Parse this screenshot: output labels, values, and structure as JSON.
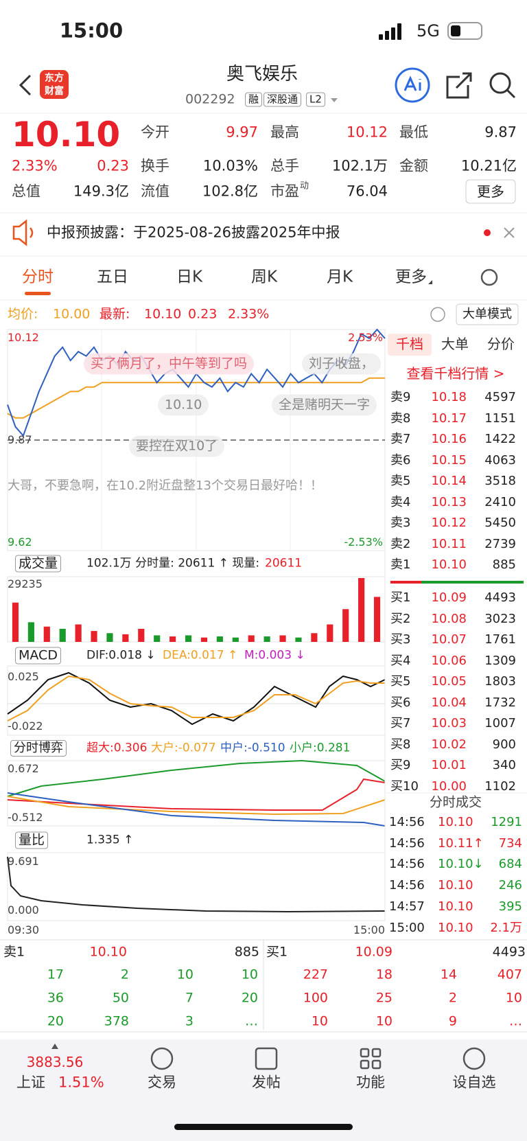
{
  "status": {
    "time": "15:00",
    "network": "5G"
  },
  "header": {
    "logo": [
      "东方",
      "财富"
    ],
    "title": "奥飞娱乐",
    "code": "002292",
    "tags": [
      "融",
      "深股通",
      "L2"
    ]
  },
  "quote": {
    "price": "10.10",
    "change_pct": "2.33%",
    "change": "0.23",
    "more": "更多",
    "fields": [
      {
        "label": "今开",
        "value": "9.97",
        "color": "#e8202a"
      },
      {
        "label": "最高",
        "value": "10.12",
        "color": "#e8202a"
      },
      {
        "label": "最低",
        "value": "9.87",
        "color": "#222222"
      },
      {
        "label": "换手",
        "value": "10.03%",
        "color": "#222222"
      },
      {
        "label": "总手",
        "value": "102.1万",
        "color": "#222222"
      },
      {
        "label": "金额",
        "value": "10.21亿",
        "color": "#222222"
      },
      {
        "label": "总值",
        "value": "149.3亿",
        "color": "#222222"
      },
      {
        "label": "流值",
        "value": "102.8亿",
        "color": "#222222"
      },
      {
        "label": "市盈",
        "sup": "动",
        "value": "76.04",
        "color": "#222222"
      }
    ]
  },
  "notice": "中报预披露：于2025-08-26披露2025年中报",
  "tabs": [
    "分时",
    "五日",
    "日K",
    "周K",
    "月K",
    "更多"
  ],
  "infobar": {
    "avg_label": "均价:",
    "avg": "10.00",
    "last_label": "最新:",
    "last": "10.10",
    "change": "0.23",
    "change_pct": "2.33%",
    "mode": "大单模式"
  },
  "chart_data": [
    {
      "type": "line",
      "ylim": [
        9.62,
        10.12
      ],
      "labels": {
        "top": "10.12",
        "top_pct": "2.53%",
        "ref": "9.87",
        "bottom": "9.62",
        "bottom_pct": "-2.53%"
      },
      "series": [
        {
          "name": "最新",
          "color": "#2d5fbf",
          "values": [
            9.95,
            9.9,
            9.88,
            9.93,
            9.98,
            10.02,
            10.06,
            10.08,
            10.05,
            10.07,
            10.06,
            10.08,
            10.05,
            10.06,
            10.04,
            10.07,
            10.05,
            10.06,
            10.03,
            10.0,
            10.02,
            10.03,
            10.01,
            9.99,
            10.02,
            10.0,
            9.99,
            10.01,
            9.98,
            10.0,
            9.99,
            10.02,
            10.0,
            10.03,
            10.01,
            9.99,
            10.02,
            10.0,
            10.01,
            10.02,
            10.0,
            10.03,
            10.05,
            10.04,
            10.07,
            10.11,
            10.1,
            10.12,
            10.1
          ]
        },
        {
          "name": "均价",
          "color": "#f0a020",
          "values": [
            9.93,
            9.92,
            9.92,
            9.93,
            9.94,
            9.95,
            9.96,
            9.97,
            9.98,
            9.98,
            9.99,
            9.99,
            10.0,
            10.0,
            10.0,
            10.0,
            10.0,
            10.0,
            10.0,
            10.0,
            10.0,
            10.0,
            10.0,
            10.0,
            10.0,
            10.0,
            10.0,
            10.0,
            10.0,
            10.0,
            10.0,
            10.0,
            10.0,
            10.0,
            10.0,
            10.0,
            10.0,
            10.0,
            10.0,
            10.0,
            10.0,
            10.0,
            10.0,
            10.0,
            10.0,
            10.0,
            10.01,
            10.01,
            10.01
          ]
        }
      ],
      "ref_value": 9.87
    },
    {
      "type": "bar",
      "title": "成交量",
      "info": "102.1万 分时量: 20611 ↑ 现量:",
      "now": "20611",
      "max_label": "29235",
      "ylim": [
        0,
        29235
      ],
      "values": [
        18000,
        9000,
        7000,
        6000,
        8000,
        5000,
        4000,
        3500,
        6000,
        3000,
        2500,
        3000,
        2000,
        2500,
        2000,
        3000,
        2500,
        3000,
        2000,
        4000,
        8000,
        15000,
        29235,
        20611
      ],
      "colors": [
        "#e8202a",
        "#1a9a2a",
        "#e8202a",
        "#1a9a2a",
        "#e8202a",
        "#e8202a",
        "#1a9a2a",
        "#e8202a",
        "#e8202a",
        "#1a9a2a",
        "#e8202a",
        "#1a9a2a",
        "#e8202a",
        "#1a9a2a",
        "#1a9a2a",
        "#e8202a",
        "#1a9a2a",
        "#e8202a",
        "#1a9a2a",
        "#e8202a",
        "#e8202a",
        "#e8202a",
        "#e8202a",
        "#e8202a"
      ]
    }
  ],
  "comments": [
    "买了俩月了，中午等到了吗",
    "刘子收盘，",
    "10.10",
    "全是赌明天一字",
    "要控在双10了",
    "大哥，不要急啊，在10.2附近盘整13个交易日最好哈！！"
  ],
  "macd": {
    "title": "MACD",
    "dif": "DIF:0.018 ↓",
    "dea": "DEA:0.017 ↑",
    "m": "M:0.003 ↓",
    "top": "0.025",
    "bottom": "-0.022"
  },
  "game": {
    "title": "分时博弈",
    "super": "超大:0.306",
    "large": "大户:-0.077",
    "mid": "中户:-0.510",
    "small": "小户:0.281",
    "top": "0.672",
    "bottom": "-0.512"
  },
  "ratio": {
    "title": "量比",
    "value": "1.335 ↑",
    "top": "9.691",
    "bottom": "0.000",
    "start": "09:30",
    "end": "15:00"
  },
  "panel": {
    "tabs": [
      "千档",
      "大单",
      "分价"
    ],
    "link": "查看千档行情 >",
    "asks": [
      [
        "卖9",
        "10.18",
        "4597"
      ],
      [
        "卖8",
        "10.17",
        "1151"
      ],
      [
        "卖7",
        "10.16",
        "1422"
      ],
      [
        "卖6",
        "10.15",
        "4063"
      ],
      [
        "卖5",
        "10.14",
        "3518"
      ],
      [
        "卖4",
        "10.13",
        "2410"
      ],
      [
        "卖3",
        "10.12",
        "5450"
      ],
      [
        "卖2",
        "10.11",
        "2739"
      ],
      [
        "卖1",
        "10.10",
        "885"
      ]
    ],
    "bids": [
      [
        "买1",
        "10.09",
        "4493"
      ],
      [
        "买2",
        "10.08",
        "3023"
      ],
      [
        "买3",
        "10.07",
        "1761"
      ],
      [
        "买4",
        "10.06",
        "1309"
      ],
      [
        "买5",
        "10.05",
        "1803"
      ],
      [
        "买6",
        "10.04",
        "1732"
      ],
      [
        "买7",
        "10.03",
        "1007"
      ],
      [
        "买8",
        "10.02",
        "900"
      ],
      [
        "买9",
        "10.01",
        "340"
      ],
      [
        "买10",
        "10.00",
        "1102"
      ]
    ],
    "trades_title": "分时成交",
    "trades": [
      {
        "time": "14:56",
        "price": "10.10",
        "volume": "1291",
        "price_color": "#e8202a",
        "volume_color": "#1a9a2a"
      },
      {
        "time": "14:56",
        "price": "10.11↑",
        "volume": "734",
        "price_color": "#e8202a",
        "volume_color": "#e8202a"
      },
      {
        "time": "14:56",
        "price": "10.10↓",
        "volume": "684",
        "price_color": "#1a9a2a",
        "volume_color": "#1a9a2a"
      },
      {
        "time": "14:56",
        "price": "10.10",
        "volume": "246",
        "price_color": "#e8202a",
        "volume_color": "#1a9a2a"
      },
      {
        "time": "14:57",
        "price": "10.10",
        "volume": "395",
        "price_color": "#e8202a",
        "volume_color": "#1a9a2a"
      },
      {
        "time": "15:00",
        "price": "10.10",
        "volume": "2.1万",
        "price_color": "#e8202a",
        "volume_color": "#e8202a"
      }
    ]
  },
  "book": {
    "sell": {
      "label": "卖1",
      "price": "10.10",
      "volume": "885",
      "rows": [
        [
          "17",
          "2",
          "10",
          "10"
        ],
        [
          "36",
          "50",
          "7",
          "20"
        ],
        [
          "20",
          "378",
          "3",
          "…"
        ]
      ]
    },
    "buy": {
      "label": "买1",
      "price": "10.09",
      "volume": "4493",
      "rows": [
        [
          "227",
          "18",
          "14",
          "407"
        ],
        [
          "100",
          "25",
          "2",
          "10"
        ],
        [
          "10",
          "10",
          "9",
          "…"
        ]
      ]
    }
  },
  "footer": {
    "index": "3883.56",
    "index_name": "上证",
    "index_pct": "1.51%",
    "items": [
      "交易",
      "发帖",
      "功能",
      "设自选"
    ]
  }
}
